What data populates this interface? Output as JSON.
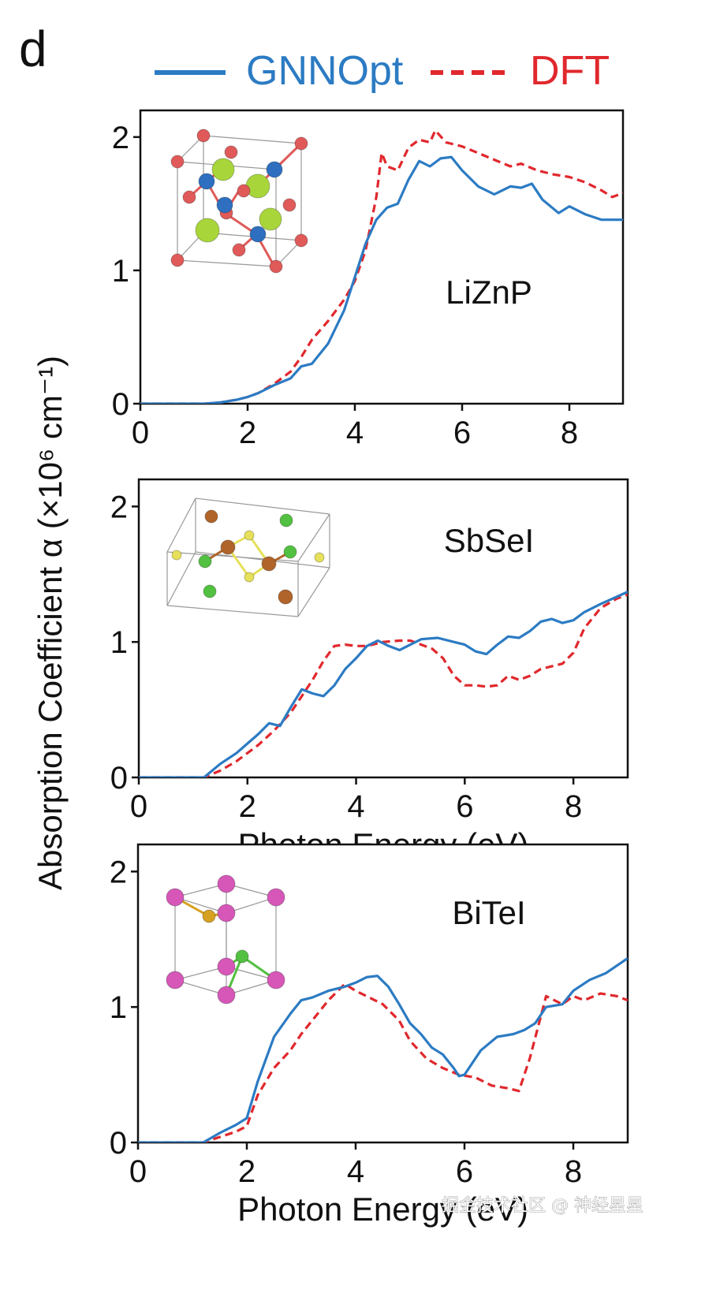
{
  "panel_letter": "d",
  "legend": {
    "gnnopt_label": "GNNOpt",
    "dft_label": "DFT"
  },
  "colors": {
    "gnnopt": "#2c7bc3",
    "dft": "#e0282d",
    "axis": "#111111",
    "atom_red": "#e05a5a",
    "atom_blue": "#2e6fbf",
    "atom_lime": "#a8d63a",
    "atom_green": "#52c040",
    "atom_brown": "#b0642a",
    "atom_yellow": "#e6e05a",
    "atom_pink": "#d657b8",
    "atom_gold": "#d6a020"
  },
  "ylabel": "Absorption Coefficient α (×10⁶ cm⁻¹)",
  "watermark": "掘金技术社区 @ 神经星星",
  "chart_data": [
    {
      "type": "line",
      "label": "LiZnP",
      "xlim": [
        0,
        9
      ],
      "ylim": [
        0,
        2.2
      ],
      "xticks": [
        "0",
        "2",
        "4",
        "6",
        "8"
      ],
      "yticks": [
        "0",
        "1",
        "2"
      ],
      "xlabel": "",
      "series": [
        {
          "name": "GNNOpt",
          "x": [
            0,
            1.2,
            1.5,
            1.8,
            2.0,
            2.2,
            2.5,
            2.8,
            3.0,
            3.2,
            3.5,
            3.8,
            4.0,
            4.2,
            4.4,
            4.6,
            4.8,
            5.0,
            5.2,
            5.4,
            5.6,
            5.8,
            6.0,
            6.3,
            6.6,
            6.9,
            7.1,
            7.3,
            7.5,
            7.8,
            8.0,
            8.3,
            8.6,
            9.0
          ],
          "y": [
            0,
            0,
            0.01,
            0.03,
            0.05,
            0.08,
            0.14,
            0.19,
            0.28,
            0.3,
            0.45,
            0.7,
            0.95,
            1.2,
            1.38,
            1.47,
            1.5,
            1.68,
            1.82,
            1.78,
            1.84,
            1.85,
            1.75,
            1.63,
            1.57,
            1.63,
            1.62,
            1.65,
            1.53,
            1.43,
            1.48,
            1.42,
            1.38,
            1.38
          ]
        },
        {
          "name": "DFT",
          "x": [
            0,
            1.2,
            1.5,
            1.8,
            2.0,
            2.2,
            2.5,
            2.8,
            3.0,
            3.2,
            3.5,
            3.8,
            4.0,
            4.2,
            4.4,
            4.5,
            4.6,
            4.8,
            5.0,
            5.2,
            5.4,
            5.5,
            5.7,
            6.0,
            6.3,
            6.6,
            6.9,
            7.1,
            7.4,
            7.7,
            8.0,
            8.3,
            8.6,
            8.8,
            9.0
          ],
          "y": [
            0,
            0,
            0.01,
            0.03,
            0.05,
            0.08,
            0.15,
            0.24,
            0.35,
            0.48,
            0.62,
            0.78,
            0.92,
            1.15,
            1.55,
            1.88,
            1.78,
            1.75,
            1.92,
            1.98,
            1.96,
            2.05,
            1.96,
            1.93,
            1.88,
            1.83,
            1.78,
            1.8,
            1.75,
            1.72,
            1.7,
            1.66,
            1.6,
            1.55,
            1.58
          ]
        }
      ]
    },
    {
      "type": "line",
      "label": "SbSeI",
      "xlim": [
        0,
        9
      ],
      "ylim": [
        0,
        2.2
      ],
      "xticks": [
        "0",
        "2",
        "4",
        "6",
        "8"
      ],
      "yticks": [
        "0",
        "1",
        "2"
      ],
      "xlabel": "Photon Energy (eV)",
      "series": [
        {
          "name": "GNNOpt",
          "x": [
            0,
            1.2,
            1.5,
            1.8,
            2.0,
            2.2,
            2.4,
            2.6,
            2.8,
            3.0,
            3.2,
            3.4,
            3.6,
            3.8,
            4.0,
            4.2,
            4.4,
            4.6,
            4.8,
            5.0,
            5.2,
            5.5,
            5.8,
            6.0,
            6.2,
            6.4,
            6.6,
            6.8,
            7.0,
            7.2,
            7.4,
            7.6,
            7.8,
            8.0,
            8.2,
            8.5,
            9.0
          ],
          "y": [
            0,
            0,
            0.1,
            0.18,
            0.25,
            0.32,
            0.4,
            0.38,
            0.52,
            0.65,
            0.62,
            0.6,
            0.68,
            0.8,
            0.88,
            0.97,
            1.01,
            0.97,
            0.94,
            0.98,
            1.02,
            1.03,
            1.0,
            0.98,
            0.93,
            0.91,
            0.98,
            1.04,
            1.03,
            1.08,
            1.15,
            1.17,
            1.14,
            1.16,
            1.22,
            1.28,
            1.37
          ]
        },
        {
          "name": "DFT",
          "x": [
            0,
            1.2,
            1.5,
            1.8,
            2.0,
            2.2,
            2.5,
            2.8,
            3.0,
            3.2,
            3.4,
            3.6,
            3.8,
            4.0,
            4.2,
            4.5,
            4.8,
            5.0,
            5.2,
            5.4,
            5.6,
            5.8,
            6.0,
            6.2,
            6.4,
            6.6,
            6.8,
            7.0,
            7.2,
            7.4,
            7.6,
            7.8,
            8.0,
            8.2,
            8.5,
            8.8,
            9.0
          ],
          "y": [
            0,
            0,
            0.05,
            0.12,
            0.18,
            0.24,
            0.35,
            0.48,
            0.6,
            0.72,
            0.86,
            0.97,
            0.98,
            0.97,
            0.97,
            1.0,
            1.01,
            1.01,
            0.98,
            0.95,
            0.88,
            0.75,
            0.68,
            0.68,
            0.67,
            0.68,
            0.75,
            0.72,
            0.75,
            0.8,
            0.82,
            0.84,
            0.92,
            1.1,
            1.25,
            1.32,
            1.35
          ]
        }
      ]
    },
    {
      "type": "line",
      "label": "BiTeI",
      "xlim": [
        0,
        9
      ],
      "ylim": [
        0,
        2.2
      ],
      "xticks": [
        "0",
        "2",
        "4",
        "6",
        "8"
      ],
      "yticks": [
        "0",
        "1",
        "2"
      ],
      "xlabel": "Photon Energy (eV)",
      "series": [
        {
          "name": "GNNOpt",
          "x": [
            0,
            1.2,
            1.5,
            1.8,
            2.0,
            2.2,
            2.5,
            2.8,
            3.0,
            3.2,
            3.5,
            3.8,
            4.0,
            4.2,
            4.4,
            4.6,
            4.8,
            5.0,
            5.2,
            5.4,
            5.6,
            5.8,
            5.9,
            6.0,
            6.3,
            6.6,
            6.9,
            7.1,
            7.3,
            7.5,
            7.8,
            8.0,
            8.3,
            8.6,
            9.0
          ],
          "y": [
            0,
            0,
            0.07,
            0.13,
            0.18,
            0.45,
            0.78,
            0.95,
            1.05,
            1.07,
            1.12,
            1.15,
            1.18,
            1.22,
            1.23,
            1.15,
            1.02,
            0.88,
            0.8,
            0.7,
            0.65,
            0.55,
            0.49,
            0.5,
            0.68,
            0.78,
            0.8,
            0.83,
            0.88,
            1.0,
            1.02,
            1.12,
            1.2,
            1.25,
            1.36
          ]
        },
        {
          "name": "DFT",
          "x": [
            0,
            1.2,
            1.5,
            1.8,
            2.0,
            2.2,
            2.5,
            2.8,
            3.0,
            3.2,
            3.5,
            3.8,
            4.0,
            4.2,
            4.5,
            4.8,
            5.0,
            5.3,
            5.6,
            5.9,
            6.2,
            6.5,
            6.8,
            7.0,
            7.2,
            7.5,
            7.8,
            8.0,
            8.2,
            8.5,
            8.8,
            9.0
          ],
          "y": [
            0,
            0,
            0.04,
            0.08,
            0.12,
            0.35,
            0.55,
            0.68,
            0.8,
            0.9,
            1.05,
            1.17,
            1.12,
            1.08,
            1.02,
            0.9,
            0.75,
            0.62,
            0.55,
            0.5,
            0.48,
            0.42,
            0.4,
            0.38,
            0.62,
            1.08,
            1.02,
            1.08,
            1.05,
            1.1,
            1.08,
            1.05
          ]
        }
      ]
    }
  ]
}
